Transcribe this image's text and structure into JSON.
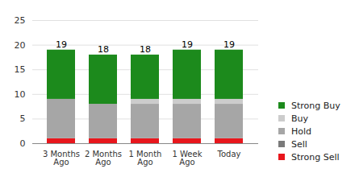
{
  "chart_data": {
    "type": "bar",
    "stacked": true,
    "categories": [
      "3 Months Ago",
      "2 Months Ago",
      "1 Month Ago",
      "1 Week Ago",
      "Today"
    ],
    "series": [
      {
        "name": "Strong Sell",
        "color": "#e8161c",
        "values": [
          1,
          1,
          1,
          1,
          1
        ]
      },
      {
        "name": "Sell",
        "color": "#7a7a7a",
        "values": [
          0,
          0,
          0,
          0,
          0
        ]
      },
      {
        "name": "Hold",
        "color": "#a6a6a6",
        "values": [
          8,
          7,
          7,
          7,
          7
        ]
      },
      {
        "name": "Buy",
        "color": "#cccccc",
        "values": [
          0,
          0,
          1,
          1,
          1
        ]
      },
      {
        "name": "Strong Buy",
        "color": "#1c8a1c",
        "values": [
          10,
          10,
          9,
          10,
          10
        ]
      }
    ],
    "totals": [
      19,
      18,
      18,
      19,
      19
    ],
    "ylim": [
      0,
      25
    ],
    "yticks": [
      0,
      5,
      10,
      15,
      20,
      25
    ],
    "grid": true,
    "legend": "right"
  }
}
